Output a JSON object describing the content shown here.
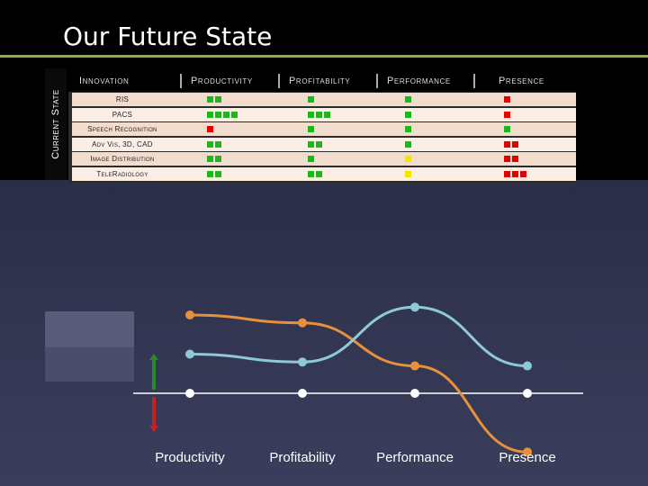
{
  "slide": {
    "title": "Our Future State",
    "side_label": "Current State"
  },
  "matrix": {
    "headers": [
      "Innovation",
      "Productivity",
      "Profitability",
      "Performance",
      "Presence"
    ],
    "rows": [
      {
        "label": "RIS",
        "cells": [
          [
            "g",
            "g"
          ],
          [
            "g"
          ],
          [
            "g"
          ],
          [
            "r"
          ]
        ]
      },
      {
        "label": "PACS",
        "cells": [
          [
            "g",
            "g",
            "g",
            "g"
          ],
          [
            "g",
            "g",
            "g"
          ],
          [
            "g"
          ],
          [
            "r"
          ]
        ]
      },
      {
        "label": "Speech Recognition",
        "cells": [
          [
            "r"
          ],
          [
            "g"
          ],
          [
            "g"
          ],
          [
            "g"
          ]
        ]
      },
      {
        "label": "Adv Vis, 3D, CAD",
        "cells": [
          [
            "g",
            "g"
          ],
          [
            "g",
            "g"
          ],
          [
            "g"
          ],
          [
            "r",
            "r"
          ]
        ]
      },
      {
        "label": "Image Distribution",
        "cells": [
          [
            "g",
            "g"
          ],
          [
            "g"
          ],
          [
            "y"
          ],
          [
            "r",
            "r"
          ]
        ]
      },
      {
        "label": "TeleRadiology",
        "cells": [
          [
            "g",
            "g"
          ],
          [
            "g",
            "g"
          ],
          [
            "y"
          ],
          [
            "r",
            "r",
            "r"
          ]
        ]
      }
    ],
    "colors": {
      "g": "#1fb51f",
      "r": "#e00000",
      "y": "#f2e600"
    }
  },
  "chart_data": {
    "type": "line",
    "categories": [
      "Productivity",
      "Profitability",
      "Performance",
      "Presence"
    ],
    "series": [
      {
        "name": "",
        "color": "#e8913a",
        "values": [
          2.0,
          1.8,
          0.7,
          -1.5
        ]
      },
      {
        "name": "",
        "color": "#8fc8d6",
        "values": [
          1.0,
          0.8,
          2.2,
          0.7
        ]
      },
      {
        "name": "",
        "color": "#ffffff",
        "values": [
          0,
          0,
          0,
          0
        ]
      }
    ],
    "arrows": {
      "up_color": "#2a8a2a",
      "down_color": "#c82020"
    }
  }
}
